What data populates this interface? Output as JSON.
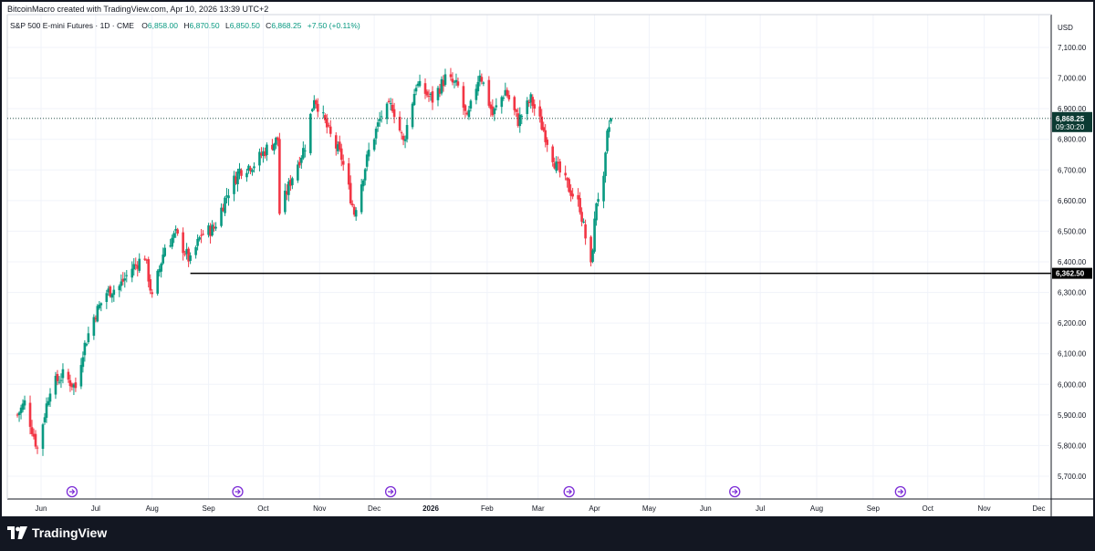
{
  "caption": "BitcoinMacro created with TradingView.com, Apr 10, 2026 13:39 UTC+2",
  "legend": {
    "symbol": "S&P 500 E-mini Futures · 1D · CME",
    "open_label": "O",
    "open": "6,858.00",
    "high_label": "H",
    "high": "6,870.50",
    "low_label": "L",
    "low": "6,850.50",
    "close_label": "C",
    "close": "6,868.25",
    "change": "+7.50 (+0.11%)"
  },
  "price_axis": {
    "currency": "USD",
    "last_price": "6,868.25",
    "countdown": "09:30:20",
    "level_price": "6,362.50"
  },
  "footer": {
    "brand": "TradingView",
    "logo_icon": "tradingview-logo-icon"
  },
  "colors": {
    "up": "#089981",
    "down": "#f23645",
    "grid": "#f0f3fa",
    "level_line": "#000000",
    "last_price_tag": "#0c3b33",
    "event_icon": "#7b2bd6"
  },
  "chart_data": {
    "type": "candlestick",
    "title": "S&P 500 E-mini Futures · 1D · CME",
    "ylabel": "USD",
    "ylim": [
      5650,
      7175
    ],
    "y_ticks": [
      5700,
      5800,
      5900,
      6000,
      6100,
      6200,
      6300,
      6400,
      6500,
      6600,
      6700,
      6800,
      6900,
      7000,
      7100
    ],
    "y_tick_labels": [
      "5,700.00",
      "5,800.00",
      "5,900.00",
      "6,000.00",
      "6,100.00",
      "6,200.00",
      "6,300.00",
      "6,400.00",
      "6,500.00",
      "6,600.00",
      "6,700.00",
      "6,800.00",
      "6,900.00",
      "7,000.00",
      "7,100.00"
    ],
    "x_tick_labels": [
      {
        "date": "2025-06-01",
        "label": "Jun"
      },
      {
        "date": "2025-07-01",
        "label": "Jul"
      },
      {
        "date": "2025-08-01",
        "label": "Aug"
      },
      {
        "date": "2025-09-01",
        "label": "Sep"
      },
      {
        "date": "2025-10-01",
        "label": "Oct"
      },
      {
        "date": "2025-11-01",
        "label": "Nov"
      },
      {
        "date": "2025-12-01",
        "label": "Dec"
      },
      {
        "date": "2026-01-01",
        "label": "2026",
        "bold": true
      },
      {
        "date": "2026-02-01",
        "label": "Feb"
      },
      {
        "date": "2026-03-01",
        "label": "Mar"
      },
      {
        "date": "2026-04-01",
        "label": "Apr"
      },
      {
        "date": "2026-05-01",
        "label": "May"
      },
      {
        "date": "2026-06-01",
        "label": "Jun"
      },
      {
        "date": "2026-07-01",
        "label": "Jul"
      },
      {
        "date": "2026-08-01",
        "label": "Aug"
      },
      {
        "date": "2026-09-01",
        "label": "Sep"
      },
      {
        "date": "2026-10-01",
        "label": "Oct"
      },
      {
        "date": "2026-11-01",
        "label": "Nov"
      },
      {
        "date": "2026-12-01",
        "label": "Dec"
      }
    ],
    "event_markers": [
      "2025-06-18",
      "2025-09-17",
      "2025-12-10",
      "2026-03-18",
      "2026-06-17",
      "2026-09-16"
    ],
    "level_line": {
      "price": 6362.5,
      "start_date": "2025-08-22"
    },
    "last_price": 6868.25,
    "series_anchors": [
      {
        "date": "2025-05-19",
        "close": 5900
      },
      {
        "date": "2025-05-23",
        "close": 5940
      },
      {
        "date": "2025-05-30",
        "close": 5790
      },
      {
        "date": "2025-06-06",
        "close": 5990
      },
      {
        "date": "2025-06-13",
        "close": 6030
      },
      {
        "date": "2025-06-20",
        "close": 5990
      },
      {
        "date": "2025-06-24",
        "close": 6110
      },
      {
        "date": "2025-06-30",
        "close": 6220
      },
      {
        "date": "2025-07-07",
        "close": 6300
      },
      {
        "date": "2025-07-14",
        "close": 6320
      },
      {
        "date": "2025-07-21",
        "close": 6380
      },
      {
        "date": "2025-07-28",
        "close": 6420
      },
      {
        "date": "2025-08-01",
        "close": 6280
      },
      {
        "date": "2025-08-08",
        "close": 6450
      },
      {
        "date": "2025-08-14",
        "close": 6490
      },
      {
        "date": "2025-08-22",
        "close": 6400
      },
      {
        "date": "2025-08-28",
        "close": 6490
      },
      {
        "date": "2025-09-04",
        "close": 6510
      },
      {
        "date": "2025-09-11",
        "close": 6620
      },
      {
        "date": "2025-09-18",
        "close": 6700
      },
      {
        "date": "2025-09-26",
        "close": 6720
      },
      {
        "date": "2025-10-03",
        "close": 6770
      },
      {
        "date": "2025-10-09",
        "close": 6800
      },
      {
        "date": "2025-10-10",
        "close": 6560
      },
      {
        "date": "2025-10-17",
        "close": 6680
      },
      {
        "date": "2025-10-24",
        "close": 6780
      },
      {
        "date": "2025-10-29",
        "close": 6940
      },
      {
        "date": "2025-11-07",
        "close": 6810
      },
      {
        "date": "2025-11-13",
        "close": 6740
      },
      {
        "date": "2025-11-20",
        "close": 6560
      },
      {
        "date": "2025-11-28",
        "close": 6760
      },
      {
        "date": "2025-12-05",
        "close": 6880
      },
      {
        "date": "2025-12-11",
        "close": 6910
      },
      {
        "date": "2025-12-17",
        "close": 6790
      },
      {
        "date": "2025-12-24",
        "close": 6980
      },
      {
        "date": "2026-01-02",
        "close": 6930
      },
      {
        "date": "2026-01-09",
        "close": 7000
      },
      {
        "date": "2026-01-16",
        "close": 6970
      },
      {
        "date": "2026-01-21",
        "close": 6860
      },
      {
        "date": "2026-01-28",
        "close": 7020
      },
      {
        "date": "2026-02-04",
        "close": 6880
      },
      {
        "date": "2026-02-11",
        "close": 6960
      },
      {
        "date": "2026-02-18",
        "close": 6860
      },
      {
        "date": "2026-02-25",
        "close": 6930
      },
      {
        "date": "2026-03-04",
        "close": 6830
      },
      {
        "date": "2026-03-11",
        "close": 6710
      },
      {
        "date": "2026-03-18",
        "close": 6640
      },
      {
        "date": "2026-03-24",
        "close": 6580
      },
      {
        "date": "2026-03-30",
        "close": 6380
      },
      {
        "date": "2026-04-02",
        "close": 6600
      },
      {
        "date": "2026-04-06",
        "close": 6660
      },
      {
        "date": "2026-04-08",
        "close": 6810
      },
      {
        "date": "2026-04-10",
        "close": 6868.25
      }
    ]
  }
}
